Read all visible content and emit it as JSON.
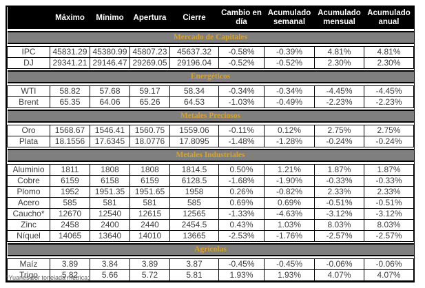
{
  "header": {
    "columns": [
      "Máximo",
      "Mínimo",
      "Apertura",
      "Cierre",
      "Cambio en día",
      "Acumulado semanal",
      "Acumulado mensual",
      "Acumulado anual"
    ]
  },
  "sections": [
    {
      "title": "Mercado de Capitales",
      "rows": [
        {
          "label": "IPC",
          "values": [
            "45831.29",
            "45380.99",
            "45807.23",
            "45637.32",
            "-0.58%",
            "-0.39%",
            "4.81%",
            "4.81%"
          ]
        },
        {
          "label": "DJ",
          "values": [
            "29341.21",
            "29146.47",
            "29269.05",
            "29196.04",
            "-0.52%",
            "-0.52%",
            "2.30%",
            "2.30%"
          ]
        }
      ]
    },
    {
      "title": "Energéticos",
      "rows": [
        {
          "label": "WTI",
          "values": [
            "58.82",
            "57.68",
            "59.17",
            "58.34",
            "-0.34%",
            "-0.34%",
            "-4.45%",
            "-4.45%"
          ]
        },
        {
          "label": "Brent",
          "values": [
            "65.35",
            "64.06",
            "65.26",
            "64.53",
            "-1.03%",
            "-0.49%",
            "-2.23%",
            "-2.23%"
          ]
        }
      ]
    },
    {
      "title": "Metales Preciosos",
      "rows": [
        {
          "label": "Oro",
          "values": [
            "1568.67",
            "1546.41",
            "1560.75",
            "1559.06",
            "-0.11%",
            "0.12%",
            "2.75%",
            "2.75%"
          ]
        },
        {
          "label": "Plata",
          "values": [
            "18.1556",
            "17.6345",
            "18.0776",
            "17.8095",
            "-1.48%",
            "-1.28%",
            "-0.24%",
            "-0.24%"
          ]
        }
      ]
    },
    {
      "title": "Metales Industriales",
      "rows": [
        {
          "label": "Aluminio",
          "values": [
            "1811",
            "1808",
            "1808",
            "1814.5",
            "0.50%",
            "1.21%",
            "1.87%",
            "1.87%"
          ]
        },
        {
          "label": "Cobre",
          "values": [
            "6159",
            "6158",
            "6159",
            "6128.5",
            "-1.68%",
            "-1.90%",
            "-0.33%",
            "-0.33%"
          ]
        },
        {
          "label": "Plomo",
          "values": [
            "1952",
            "1951.35",
            "1951.65",
            "1958",
            "0.26%",
            "-0.82%",
            "2.33%",
            "2.33%"
          ]
        },
        {
          "label": "Acero",
          "values": [
            "585",
            "581",
            "581",
            "585",
            "0.69%",
            "0.69%",
            "-0.51%",
            "-0.51%"
          ]
        },
        {
          "label": "Caucho*",
          "values": [
            "12670",
            "12540",
            "12615",
            "12565",
            "-1.33%",
            "-4.63%",
            "-3.12%",
            "-3.12%"
          ]
        },
        {
          "label": "Zinc",
          "values": [
            "2458",
            "2400",
            "2440",
            "2454.5",
            "0.43%",
            "1.03%",
            "8.03%",
            "8.03%"
          ]
        },
        {
          "label": "Níquel",
          "values": [
            "14065",
            "13640",
            "14010",
            "13665",
            "-2.53%",
            "-1.76%",
            "-2.57%",
            "-2.57%"
          ]
        }
      ]
    },
    {
      "title": "Agrícolas",
      "rows": [
        {
          "label": "Maíz",
          "values": [
            "3.89",
            "3.84",
            "3.89",
            "3.87",
            "-0.45%",
            "-0.45%",
            "-0.06%",
            "-0.06%"
          ]
        },
        {
          "label": "Trigo",
          "values": [
            "5.82",
            "5.66",
            "5.72",
            "5.81",
            "1.93%",
            "1.93%",
            "4.07%",
            "4.07%"
          ]
        }
      ]
    }
  ],
  "footnote": "*Yuanes por tonelada métrica;",
  "colors": {
    "header_bg": "#000000",
    "header_text": "#ffffff",
    "section_band_bg": "#7f7f7f",
    "section_band_text": "#dca227",
    "data_text": "#3d3d3d",
    "border": "#000000"
  }
}
